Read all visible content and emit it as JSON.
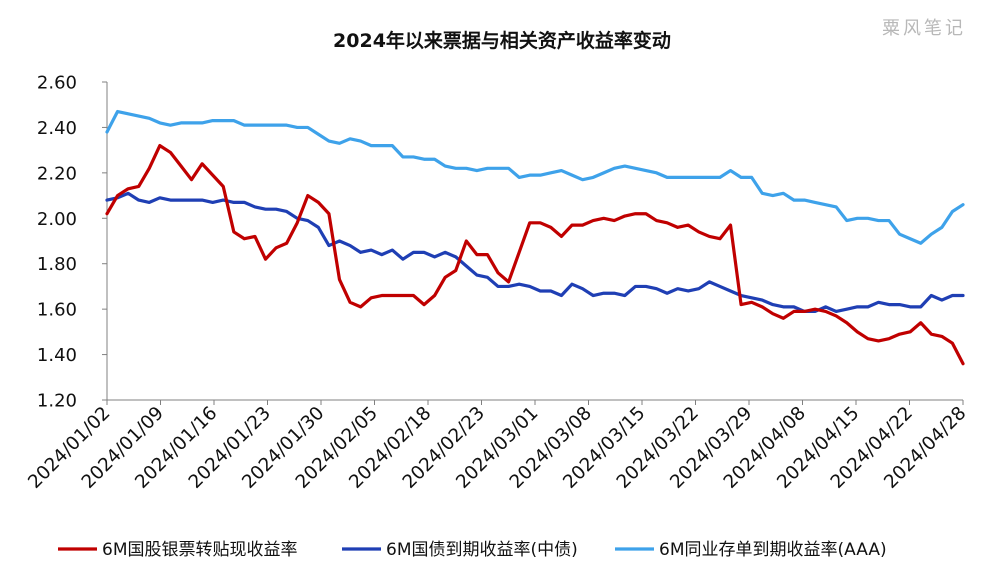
{
  "watermark": "粟风笔记",
  "chart_data": {
    "type": "line",
    "title": "2024年以来票据与相关资产收益率变动",
    "xlabel": "",
    "ylabel": "",
    "ylim": [
      1.2,
      2.6
    ],
    "yticks": [
      "1.20",
      "1.40",
      "1.60",
      "1.80",
      "2.00",
      "2.20",
      "2.40",
      "2.60"
    ],
    "x_tick_labels": [
      "2024/01/02",
      "2024/01/09",
      "2024/01/16",
      "2024/01/23",
      "2024/01/30",
      "2024/02/05",
      "2024/02/18",
      "2024/02/23",
      "2024/03/01",
      "2024/03/08",
      "2024/03/15",
      "2024/03/22",
      "2024/03/29",
      "2024/04/08",
      "2024/04/15",
      "2024/04/22",
      "2024/04/28"
    ],
    "grid": false,
    "legend_position": "bottom",
    "series": [
      {
        "name": "6M国股银票转贴现收益率",
        "color": "#c00000",
        "values": [
          2.02,
          2.1,
          2.13,
          2.14,
          2.22,
          2.32,
          2.29,
          2.23,
          2.17,
          2.24,
          2.19,
          2.14,
          1.94,
          1.91,
          1.92,
          1.82,
          1.87,
          1.89,
          1.98,
          2.1,
          2.07,
          2.02,
          1.73,
          1.63,
          1.61,
          1.65,
          1.66,
          1.66,
          1.66,
          1.66,
          1.62,
          1.66,
          1.74,
          1.77,
          1.9,
          1.84,
          1.84,
          1.76,
          1.72,
          1.85,
          1.98,
          1.98,
          1.96,
          1.92,
          1.97,
          1.97,
          1.99,
          2.0,
          1.99,
          2.01,
          2.02,
          2.02,
          1.99,
          1.98,
          1.96,
          1.97,
          1.94,
          1.92,
          1.91,
          1.97,
          1.62,
          1.63,
          1.61,
          1.58,
          1.56,
          1.59,
          1.59,
          1.6,
          1.59,
          1.57,
          1.54,
          1.5,
          1.47,
          1.46,
          1.47,
          1.49,
          1.5,
          1.54,
          1.49,
          1.48,
          1.45,
          1.36
        ]
      },
      {
        "name": "6M国债到期收益率(中债)",
        "color": "#1f3fb4",
        "values": [
          2.08,
          2.09,
          2.11,
          2.08,
          2.07,
          2.09,
          2.08,
          2.08,
          2.08,
          2.08,
          2.07,
          2.08,
          2.07,
          2.07,
          2.05,
          2.04,
          2.04,
          2.03,
          2.0,
          1.99,
          1.96,
          1.88,
          1.9,
          1.88,
          1.85,
          1.86,
          1.84,
          1.86,
          1.82,
          1.85,
          1.85,
          1.83,
          1.85,
          1.83,
          1.79,
          1.75,
          1.74,
          1.7,
          1.7,
          1.71,
          1.7,
          1.68,
          1.68,
          1.66,
          1.71,
          1.69,
          1.66,
          1.67,
          1.67,
          1.66,
          1.7,
          1.7,
          1.69,
          1.67,
          1.69,
          1.68,
          1.69,
          1.72,
          1.7,
          1.68,
          1.66,
          1.65,
          1.64,
          1.62,
          1.61,
          1.61,
          1.59,
          1.59,
          1.61,
          1.59,
          1.6,
          1.61,
          1.61,
          1.63,
          1.62,
          1.62,
          1.61,
          1.61,
          1.66,
          1.64,
          1.66,
          1.66
        ]
      },
      {
        "name": "6M同业存单到期收益率(AAA)",
        "color": "#3ea2ea",
        "values": [
          2.38,
          2.47,
          2.46,
          2.45,
          2.44,
          2.42,
          2.41,
          2.42,
          2.42,
          2.42,
          2.43,
          2.43,
          2.43,
          2.41,
          2.41,
          2.41,
          2.41,
          2.41,
          2.4,
          2.4,
          2.37,
          2.34,
          2.33,
          2.35,
          2.34,
          2.32,
          2.32,
          2.32,
          2.27,
          2.27,
          2.26,
          2.26,
          2.23,
          2.22,
          2.22,
          2.21,
          2.22,
          2.22,
          2.22,
          2.18,
          2.19,
          2.19,
          2.2,
          2.21,
          2.19,
          2.17,
          2.18,
          2.2,
          2.22,
          2.23,
          2.22,
          2.21,
          2.2,
          2.18,
          2.18,
          2.18,
          2.18,
          2.18,
          2.18,
          2.21,
          2.18,
          2.18,
          2.11,
          2.1,
          2.11,
          2.08,
          2.08,
          2.07,
          2.06,
          2.05,
          1.99,
          2.0,
          2.0,
          1.99,
          1.99,
          1.93,
          1.91,
          1.89,
          1.93,
          1.96,
          2.03,
          2.06
        ]
      }
    ]
  }
}
